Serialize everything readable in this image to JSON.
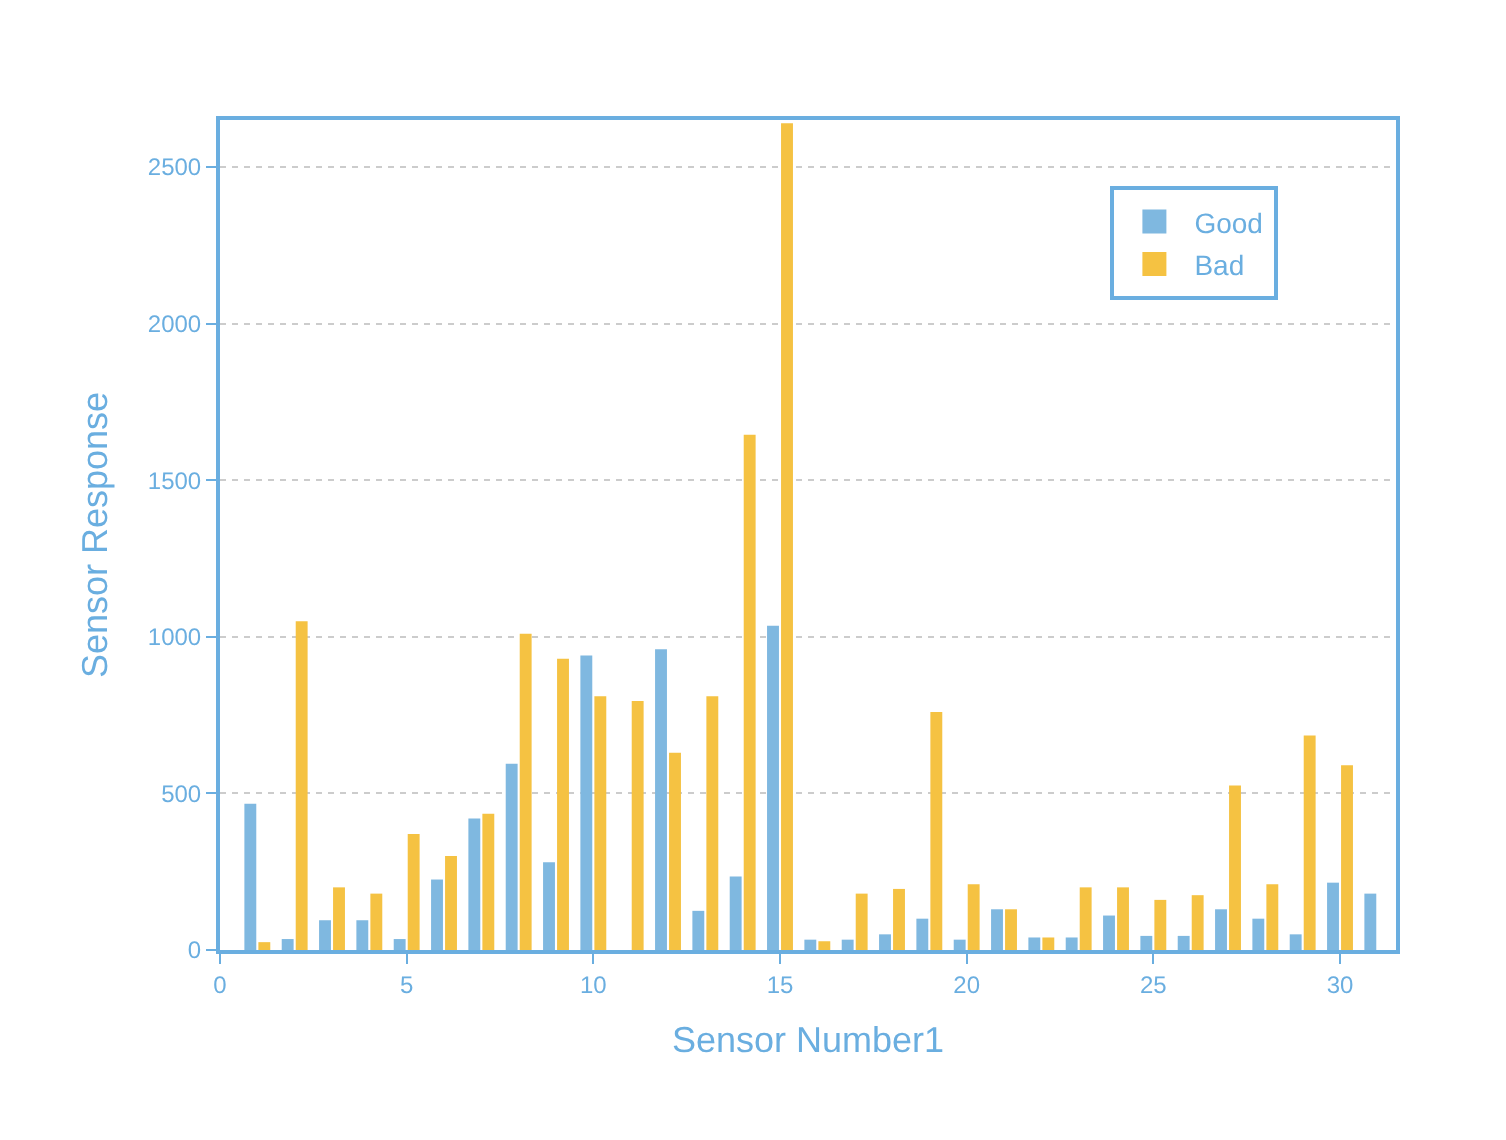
{
  "chart_data": {
    "type": "bar",
    "xlabel": "Sensor Number1",
    "ylabel": "Sensor Response",
    "x": [
      1,
      2,
      3,
      4,
      5,
      6,
      7,
      8,
      9,
      10,
      11,
      12,
      13,
      14,
      15,
      16,
      17,
      18,
      19,
      20,
      21,
      22,
      23,
      24,
      25,
      26,
      27,
      28,
      29,
      30,
      31
    ],
    "series": [
      {
        "name": "Good",
        "color": "#7fb8e0",
        "values": [
          467,
          35,
          95,
          95,
          35,
          225,
          420,
          595,
          280,
          940,
          0,
          960,
          125,
          235,
          1035,
          33,
          33,
          50,
          100,
          33,
          130,
          40,
          40,
          110,
          45,
          45,
          130,
          100,
          50,
          215,
          180
        ]
      },
      {
        "name": "Bad",
        "color": "#f5c242",
        "values": [
          25,
          1050,
          200,
          180,
          370,
          300,
          435,
          1010,
          930,
          810,
          795,
          630,
          810,
          1645,
          2640,
          28,
          180,
          195,
          760,
          210,
          130,
          40,
          200,
          200,
          160,
          175,
          525,
          210,
          685,
          590,
          0
        ]
      }
    ],
    "xlim": [
      0,
      31.5
    ],
    "xticks": [
      0,
      5,
      10,
      15,
      20,
      25,
      30
    ],
    "ylim": [
      0,
      2650
    ],
    "yticks": [
      0,
      500,
      1000,
      1500,
      2000,
      2500
    ],
    "grid": "y",
    "legend": "top right"
  }
}
